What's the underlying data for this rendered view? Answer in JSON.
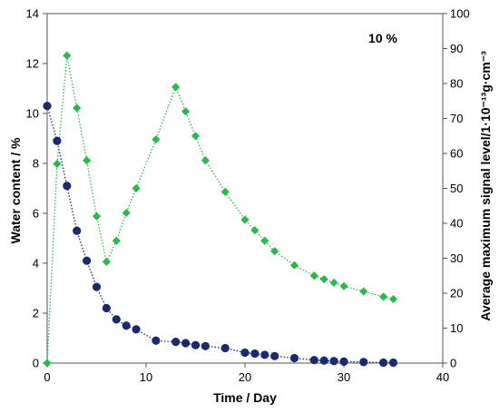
{
  "chart_data": {
    "type": "scatter",
    "annotation": "10 %",
    "xlabel": "Time / Day",
    "ylabel_left": "Water content / %",
    "ylabel_right": "Average maximum signal level/1·10⁻¹³g·cm⁻³",
    "xlim": [
      0,
      40
    ],
    "ylim_left": [
      0,
      14
    ],
    "ylim_right": [
      0,
      100
    ],
    "x_ticks": [
      0,
      10,
      20,
      30,
      40
    ],
    "y_left_ticks": [
      0,
      2,
      4,
      6,
      8,
      10,
      12,
      14
    ],
    "y_right_ticks": [
      0,
      10,
      20,
      30,
      40,
      50,
      60,
      70,
      80,
      90,
      100
    ],
    "grid": false,
    "series": [
      {
        "axis": "left",
        "marker": "circle",
        "line": "dotted",
        "color": "#1a2a6c",
        "x": [
          0,
          1,
          2,
          3,
          4,
          5,
          6,
          7,
          8,
          9,
          11,
          13,
          14,
          15,
          16,
          18,
          20,
          21,
          22,
          23,
          25,
          27,
          28,
          29,
          30,
          32,
          34,
          35
        ],
        "y": [
          10.3,
          8.9,
          7.1,
          5.3,
          4.1,
          3.05,
          2.2,
          1.75,
          1.5,
          1.35,
          0.9,
          0.85,
          0.8,
          0.72,
          0.68,
          0.6,
          0.42,
          0.38,
          0.33,
          0.28,
          0.2,
          0.12,
          0.1,
          0.08,
          0.06,
          0.04,
          0.02,
          0.02
        ]
      },
      {
        "axis": "right",
        "marker": "diamond",
        "line": "dotted",
        "color": "#2db84e",
        "x": [
          0,
          1,
          2,
          3,
          4,
          5,
          6,
          7,
          8,
          9,
          11,
          13,
          14,
          15,
          16,
          18,
          20,
          21,
          22,
          23,
          25,
          27,
          28,
          29,
          30,
          32,
          34,
          35
        ],
        "y": [
          0,
          57,
          88,
          73,
          58,
          42,
          29,
          35,
          43,
          50,
          64,
          79,
          72,
          65,
          58,
          49,
          41,
          38,
          35,
          32,
          28,
          25,
          24,
          23,
          22,
          20.5,
          19,
          18.3
        ]
      }
    ]
  }
}
